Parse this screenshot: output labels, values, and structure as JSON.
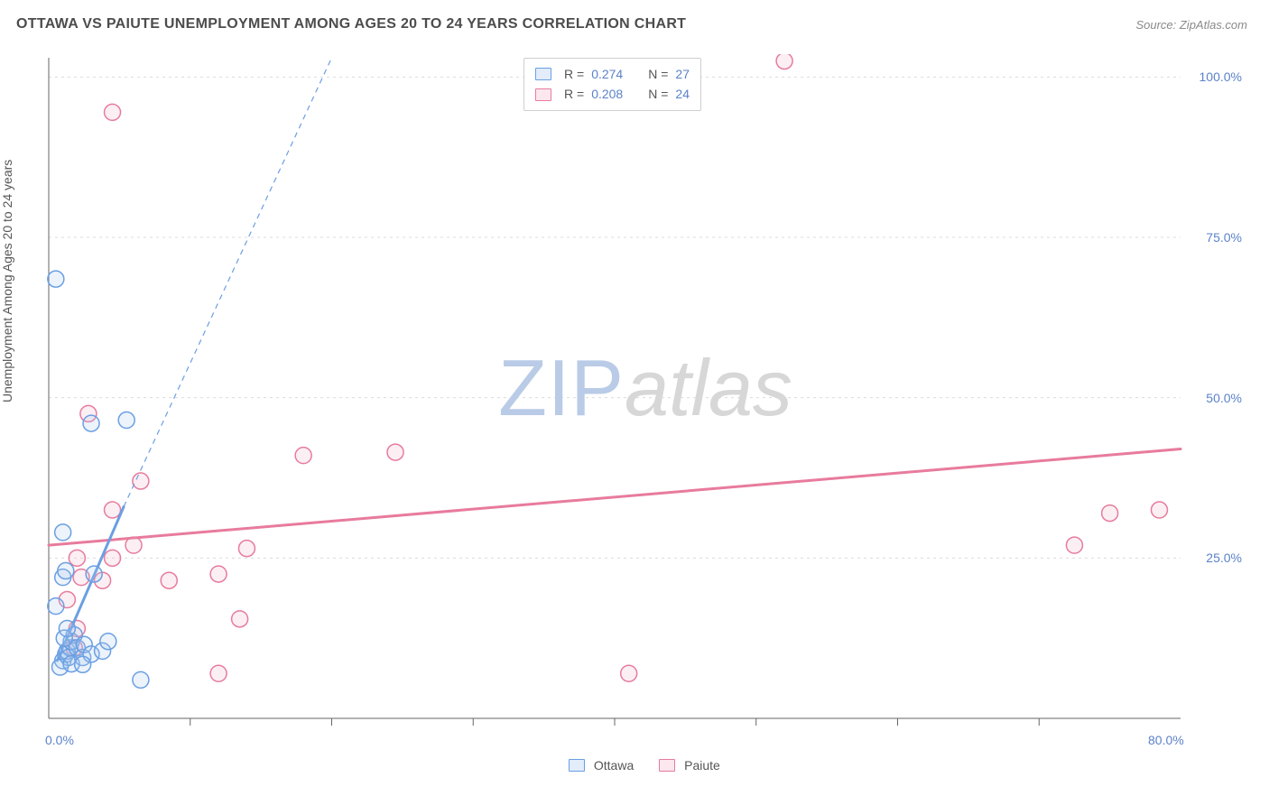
{
  "title": "OTTAWA VS PAIUTE UNEMPLOYMENT AMONG AGES 20 TO 24 YEARS CORRELATION CHART",
  "source_label": "Source: ",
  "source_value": "ZipAtlas.com",
  "ylabel": "Unemployment Among Ages 20 to 24 years",
  "type": "scatter",
  "background_color": "#ffffff",
  "grid_color": "#dcdcdc",
  "axis_color": "#666666",
  "text_color": "#555555",
  "value_color": "#5b82c9",
  "title_fontsize": 16,
  "label_fontsize": 14,
  "tick_fontsize": 14,
  "xlim": [
    0,
    80
  ],
  "ylim": [
    0,
    103
  ],
  "x_ticks": [
    0,
    80
  ],
  "x_tick_labels": [
    "0.0%",
    "80.0%"
  ],
  "x_minor_ticks": [
    10,
    20,
    30,
    40,
    50,
    60,
    70
  ],
  "y_ticks": [
    25,
    50,
    75,
    100
  ],
  "y_tick_labels": [
    "25.0%",
    "50.0%",
    "75.0%",
    "100.0%"
  ],
  "marker_radius": 9,
  "marker_stroke_width": 1.5,
  "marker_fill_opacity": 0.22,
  "trend_solid_width": 3,
  "trend_dash_width": 1.2,
  "trend_dash_pattern": "6,5",
  "series": {
    "ottawa": {
      "label": "Ottawa",
      "color": "#6a9fe3",
      "fill": "#a9c7ef",
      "r_value": "0.274",
      "n_value": "27",
      "points": [
        [
          1.0,
          9.0
        ],
        [
          1.2,
          10.0
        ],
        [
          1.3,
          10.5
        ],
        [
          1.5,
          11.0
        ],
        [
          1.4,
          9.5
        ],
        [
          1.6,
          12.0
        ],
        [
          1.8,
          13.0
        ],
        [
          0.8,
          8.0
        ],
        [
          1.1,
          12.5
        ],
        [
          1.3,
          14.0
        ],
        [
          0.5,
          17.5
        ],
        [
          2.0,
          11.0
        ],
        [
          1.6,
          8.5
        ],
        [
          2.4,
          9.5
        ],
        [
          2.5,
          11.5
        ],
        [
          3.0,
          10.0
        ],
        [
          3.8,
          10.5
        ],
        [
          4.2,
          12.0
        ],
        [
          1.0,
          22.0
        ],
        [
          1.2,
          23.0
        ],
        [
          1.0,
          29.0
        ],
        [
          3.2,
          22.5
        ],
        [
          3.0,
          46.0
        ],
        [
          5.5,
          46.5
        ],
        [
          0.5,
          68.5
        ],
        [
          6.5,
          6.0
        ],
        [
          2.4,
          8.4
        ]
      ],
      "trend": {
        "solid": [
          [
            0.6,
            9.0
          ],
          [
            5.3,
            33.0
          ]
        ],
        "dashed": [
          [
            5.3,
            33.0
          ],
          [
            20.0,
            103.0
          ]
        ]
      }
    },
    "paiute": {
      "label": "Paiute",
      "color": "#e87b9d",
      "fill": "#f3b6c8",
      "r_value": "0.208",
      "n_value": "24",
      "points": [
        [
          1.8,
          11.0
        ],
        [
          2.0,
          14.0
        ],
        [
          1.3,
          18.5
        ],
        [
          2.3,
          22.0
        ],
        [
          3.8,
          21.5
        ],
        [
          8.5,
          21.5
        ],
        [
          12.0,
          22.5
        ],
        [
          2.0,
          25.0
        ],
        [
          4.5,
          25.0
        ],
        [
          14.0,
          26.5
        ],
        [
          4.5,
          32.5
        ],
        [
          6.5,
          37.0
        ],
        [
          6.0,
          27.0
        ],
        [
          18.0,
          41.0
        ],
        [
          24.5,
          41.5
        ],
        [
          13.5,
          15.5
        ],
        [
          12.0,
          7.0
        ],
        [
          41.0,
          7.0
        ],
        [
          2.8,
          47.5
        ],
        [
          4.5,
          94.5
        ],
        [
          52.0,
          102.5
        ],
        [
          72.5,
          27.0
        ],
        [
          75.0,
          32.0
        ],
        [
          78.5,
          32.5
        ]
      ],
      "trend": {
        "solid": [
          [
            0.0,
            27.0
          ],
          [
            80.0,
            42.0
          ]
        ]
      }
    }
  },
  "top_legend_labels": {
    "r_prefix": "R = ",
    "n_prefix": "N = "
  },
  "watermark": {
    "a": "ZIP",
    "b": "atlas"
  }
}
